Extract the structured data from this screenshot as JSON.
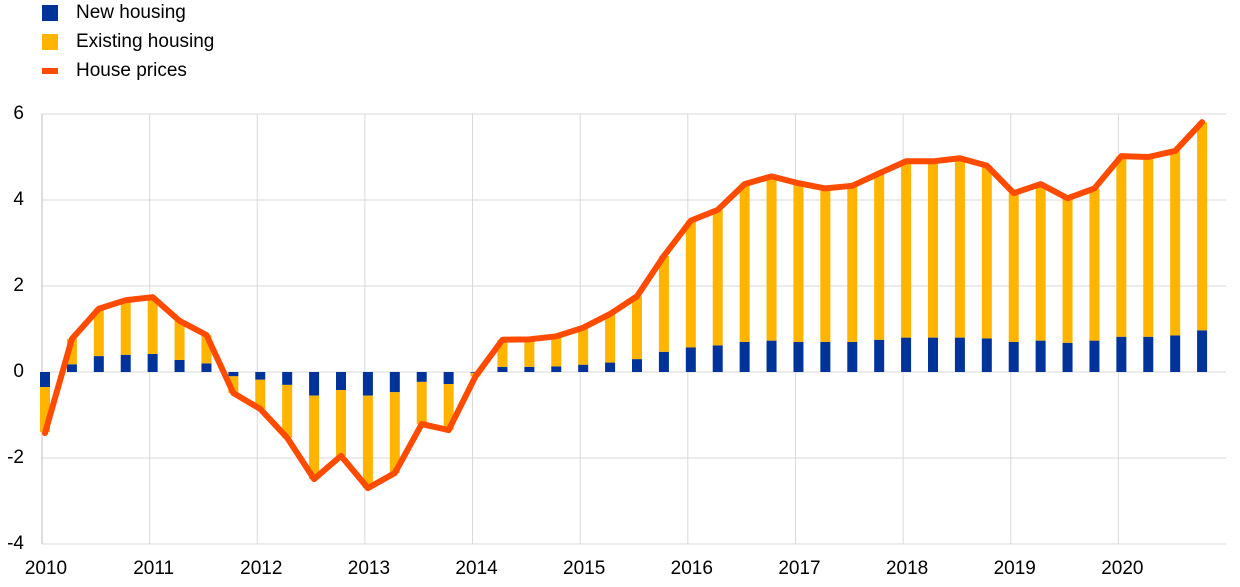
{
  "chart_data": {
    "type": "bar",
    "stacked": true,
    "legend": "top-left",
    "grid": true,
    "categories": [
      "2010",
      null,
      null,
      null,
      "2011",
      null,
      null,
      null,
      "2012",
      null,
      null,
      null,
      "2013",
      null,
      null,
      null,
      "2014",
      null,
      null,
      null,
      "2015",
      null,
      null,
      null,
      "2016",
      null,
      null,
      null,
      "2017",
      null,
      null,
      null,
      "2018",
      null,
      null,
      null,
      "2019",
      null,
      null,
      null,
      "2020",
      null,
      null,
      null
    ],
    "ylim": [
      -4,
      6
    ],
    "yticks": [
      -4,
      -2,
      0,
      2,
      4,
      6
    ],
    "series": [
      {
        "name": "New housing",
        "type": "bar",
        "color": "#003399",
        "values": [
          -0.35,
          0.18,
          0.37,
          0.4,
          0.42,
          0.28,
          0.2,
          -0.1,
          -0.18,
          -0.3,
          -0.55,
          -0.42,
          -0.55,
          -0.47,
          -0.23,
          -0.28,
          -0.02,
          0.12,
          0.12,
          0.13,
          0.17,
          0.22,
          0.3,
          0.47,
          0.57,
          0.62,
          0.7,
          0.73,
          0.7,
          0.7,
          0.7,
          0.75,
          0.8,
          0.8,
          0.8,
          0.78,
          0.7,
          0.73,
          0.68,
          0.73,
          0.82,
          0.82,
          0.85,
          0.97
        ]
      },
      {
        "name": "Existing housing",
        "type": "bar",
        "color": "#ffb400",
        "values": [
          -1.05,
          0.59,
          1.1,
          1.27,
          1.32,
          0.91,
          0.66,
          -0.39,
          -0.68,
          -1.23,
          -1.94,
          -1.53,
          -2.15,
          -1.88,
          -0.98,
          -1.07,
          -0.08,
          0.63,
          0.64,
          0.7,
          0.86,
          1.13,
          1.46,
          2.23,
          2.95,
          3.15,
          3.67,
          3.82,
          3.69,
          3.57,
          3.63,
          3.87,
          4.1,
          4.1,
          4.17,
          4.02,
          3.46,
          3.64,
          3.36,
          3.54,
          4.2,
          4.18,
          4.29,
          4.84
        ]
      },
      {
        "name": "House prices",
        "type": "line",
        "color": "#ff4b00",
        "values": [
          -1.42,
          0.77,
          1.47,
          1.67,
          1.74,
          1.19,
          0.86,
          -0.49,
          -0.86,
          -1.53,
          -2.49,
          -1.95,
          -2.7,
          -2.35,
          -1.21,
          -1.35,
          -0.1,
          0.75,
          0.76,
          0.83,
          1.03,
          1.35,
          1.76,
          2.7,
          3.52,
          3.77,
          4.37,
          4.55,
          4.39,
          4.27,
          4.33,
          4.62,
          4.9,
          4.9,
          4.97,
          4.8,
          4.16,
          4.37,
          4.04,
          4.27,
          5.02,
          5.0,
          5.14,
          5.81
        ]
      }
    ]
  }
}
